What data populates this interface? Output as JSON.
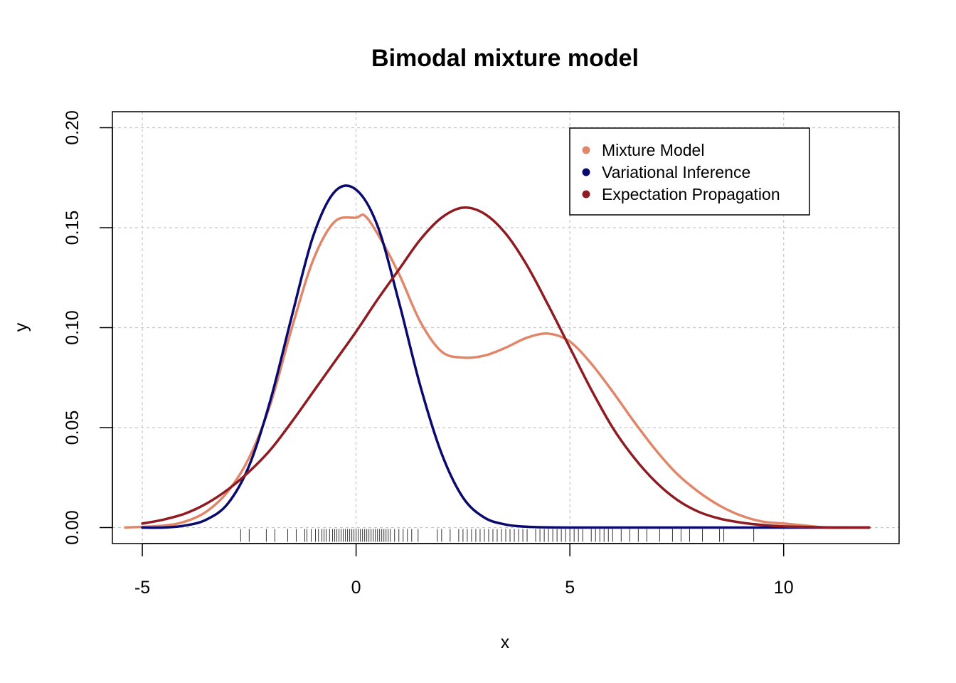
{
  "chart_data": {
    "type": "line",
    "title": "Bimodal mixture model",
    "xlabel": "x",
    "ylabel": "y",
    "xlim": [
      -5.7,
      12.7
    ],
    "ylim": [
      -0.008,
      0.208
    ],
    "x_ticks": [
      -5,
      0,
      5,
      10
    ],
    "y_ticks": [
      0.0,
      0.05,
      0.1,
      0.15,
      0.2
    ],
    "x_tick_labels": [
      "-5",
      "0",
      "5",
      "10"
    ],
    "y_tick_labels": [
      "0.00",
      "0.05",
      "0.10",
      "0.15",
      "0.20"
    ],
    "grid": true,
    "legend_position": "top-right",
    "series": [
      {
        "name": "Mixture Model",
        "color": "#E0876A",
        "x": [
          -5.4,
          -4.5,
          -4.0,
          -3.5,
          -3.0,
          -2.5,
          -2.0,
          -1.5,
          -1.0,
          -0.5,
          0.0,
          0.2,
          0.5,
          1.0,
          1.5,
          2.0,
          2.5,
          3.0,
          3.5,
          4.0,
          4.5,
          5.0,
          5.5,
          6.0,
          6.5,
          7.0,
          7.5,
          8.0,
          8.5,
          9.0,
          9.5,
          10.0,
          10.5,
          11.0,
          11.5,
          12.0
        ],
        "y": [
          0.0,
          0.001,
          0.003,
          0.008,
          0.018,
          0.035,
          0.062,
          0.1,
          0.134,
          0.153,
          0.155,
          0.156,
          0.147,
          0.127,
          0.103,
          0.088,
          0.085,
          0.086,
          0.09,
          0.095,
          0.097,
          0.093,
          0.082,
          0.068,
          0.053,
          0.039,
          0.027,
          0.018,
          0.011,
          0.006,
          0.003,
          0.002,
          0.001,
          0.0,
          0.0,
          0.0
        ]
      },
      {
        "name": "Variational Inference",
        "color": "#0A0A6E",
        "x": [
          -5.0,
          -4.5,
          -4.0,
          -3.5,
          -3.0,
          -2.5,
          -2.0,
          -1.5,
          -1.0,
          -0.5,
          0.0,
          0.5,
          1.0,
          1.5,
          2.0,
          2.5,
          3.0,
          3.5,
          4.0,
          4.5,
          5.0,
          6.0,
          8.0,
          10.0,
          12.0
        ],
        "y": [
          0.0,
          0.0,
          0.001,
          0.004,
          0.012,
          0.031,
          0.064,
          0.106,
          0.146,
          0.168,
          0.169,
          0.151,
          0.113,
          0.071,
          0.037,
          0.015,
          0.005,
          0.0015,
          0.0004,
          0.0001,
          0.0,
          0.0,
          0.0,
          0.0,
          0.0
        ]
      },
      {
        "name": "Expectation Propagation",
        "color": "#8E1C22",
        "x": [
          -5.0,
          -4.5,
          -4.0,
          -3.5,
          -3.0,
          -2.5,
          -2.0,
          -1.5,
          -1.0,
          -0.5,
          0.0,
          0.5,
          1.0,
          1.5,
          2.0,
          2.5,
          3.0,
          3.5,
          4.0,
          4.5,
          5.0,
          5.5,
          6.0,
          6.5,
          7.0,
          7.5,
          8.0,
          8.5,
          9.0,
          9.5,
          10.0,
          10.5,
          11.0,
          11.5,
          12.0
        ],
        "y": [
          0.002,
          0.004,
          0.007,
          0.012,
          0.019,
          0.028,
          0.039,
          0.053,
          0.068,
          0.083,
          0.098,
          0.114,
          0.129,
          0.144,
          0.155,
          0.16,
          0.157,
          0.147,
          0.131,
          0.111,
          0.09,
          0.069,
          0.05,
          0.035,
          0.023,
          0.014,
          0.008,
          0.0045,
          0.0025,
          0.0013,
          0.0006,
          0.0003,
          0.0001,
          0.0,
          0.0
        ]
      }
    ],
    "rug": [
      -2.7,
      -2.5,
      -2.1,
      -1.9,
      -1.6,
      -1.4,
      -1.2,
      -1.15,
      -1.05,
      -0.95,
      -0.88,
      -0.8,
      -0.75,
      -0.7,
      -0.62,
      -0.55,
      -0.5,
      -0.45,
      -0.4,
      -0.35,
      -0.3,
      -0.25,
      -0.2,
      -0.15,
      -0.1,
      -0.05,
      0.0,
      0.05,
      0.1,
      0.15,
      0.2,
      0.25,
      0.3,
      0.35,
      0.4,
      0.45,
      0.5,
      0.55,
      0.6,
      0.65,
      0.7,
      0.75,
      0.8,
      0.9,
      1.0,
      1.1,
      1.2,
      1.3,
      1.45,
      1.9,
      2.0,
      2.2,
      2.4,
      2.5,
      2.6,
      2.7,
      2.8,
      2.9,
      3.0,
      3.1,
      3.2,
      3.3,
      3.4,
      3.5,
      3.6,
      3.7,
      3.8,
      3.9,
      4.0,
      4.2,
      4.3,
      4.4,
      4.5,
      4.6,
      4.7,
      4.8,
      4.9,
      5.0,
      5.1,
      5.2,
      5.3,
      5.5,
      5.6,
      5.7,
      5.8,
      5.9,
      6.0,
      6.2,
      6.4,
      6.6,
      6.8,
      7.1,
      7.4,
      7.6,
      7.8,
      8.1,
      8.5,
      8.6,
      9.3
    ]
  }
}
